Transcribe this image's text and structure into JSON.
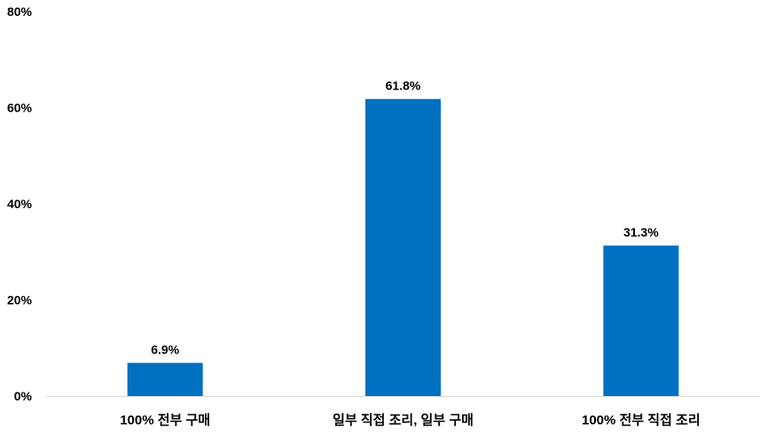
{
  "chart_data": {
    "type": "bar",
    "title": "",
    "xlabel": "",
    "ylabel": "",
    "categories": [
      "100% 전부 구매",
      "일부 직접 조리, 일부 구매",
      "100% 전부 직접 조리"
    ],
    "values": [
      6.9,
      61.8,
      31.3
    ],
    "data_labels": [
      "6.9%",
      "61.8%",
      "31.3%"
    ],
    "ylim": [
      0,
      80
    ],
    "yticks": [
      0,
      20,
      40,
      60,
      80
    ],
    "ytick_labels": [
      "0%",
      "20%",
      "40%",
      "60%",
      "80%"
    ],
    "grid": false,
    "legend": "none",
    "bar_color": "#0070C0"
  }
}
